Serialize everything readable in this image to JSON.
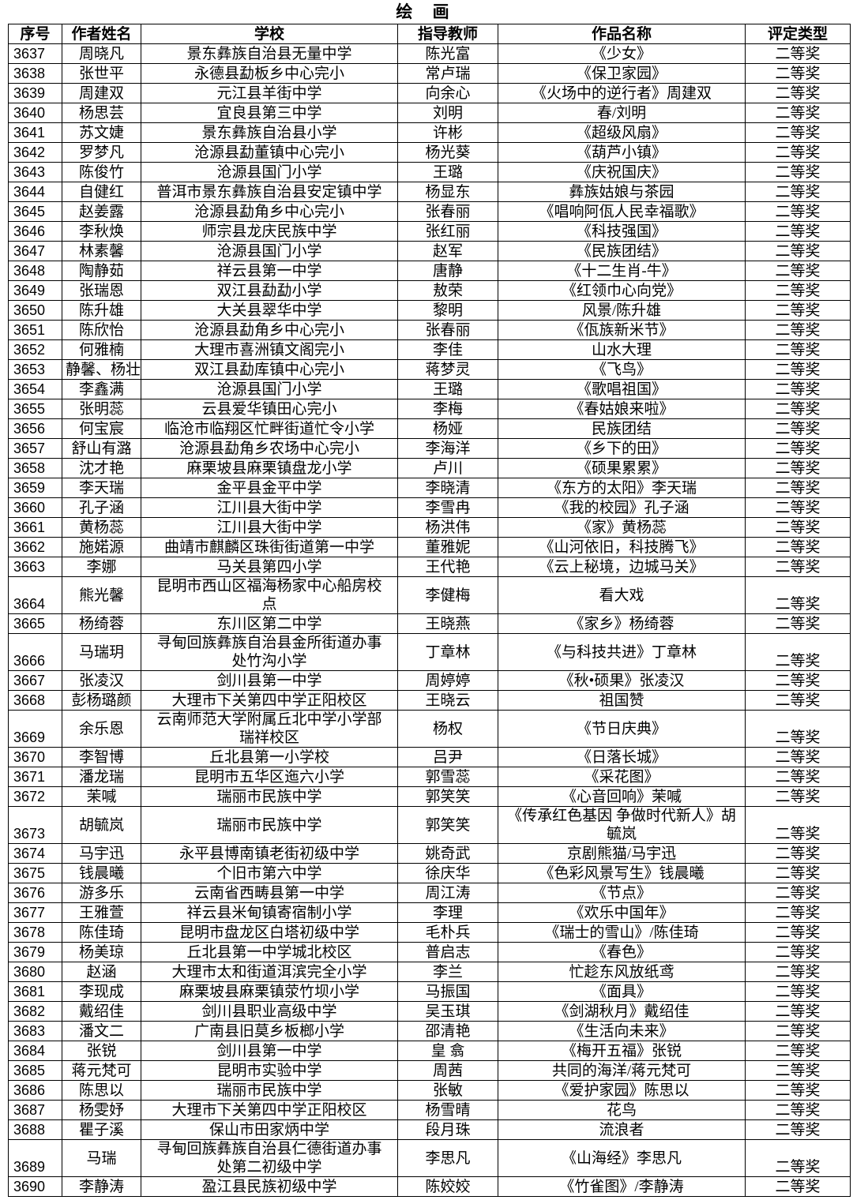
{
  "title": "绘 画",
  "table": {
    "headers": [
      "序号",
      "作者姓名",
      "学校",
      "指导教师",
      "作品名称",
      "评定类型"
    ],
    "rows": [
      [
        "3637",
        "周晓凡",
        "景东彝族自治县无量中学",
        "陈光富",
        "《少女》",
        "二等奖"
      ],
      [
        "3638",
        "张世平",
        "永德县勐板乡中心完小",
        "常卢瑞",
        "《保卫家园》",
        "二等奖"
      ],
      [
        "3639",
        "周建双",
        "元江县羊街中学",
        "向余心",
        "《火场中的逆行者》周建双",
        "二等奖"
      ],
      [
        "3640",
        "杨思芸",
        "宜良县第三中学",
        "刘明",
        "春/刘明",
        "二等奖"
      ],
      [
        "3641",
        "苏文婕",
        "景东彝族自治县小学",
        "许彬",
        "《超级风扇》",
        "二等奖"
      ],
      [
        "3642",
        "罗梦凡",
        "沧源县勐董镇中心完小",
        "杨光葵",
        "《葫芦小镇》",
        "二等奖"
      ],
      [
        "3643",
        "陈俊竹",
        "沧源县国门小学",
        "王璐",
        "《庆祝国庆》",
        "二等奖"
      ],
      [
        "3644",
        "自健红",
        "普洱市景东彝族自治县安定镇中学",
        "杨显东",
        "彝族姑娘与茶园",
        "二等奖"
      ],
      [
        "3645",
        "赵姜露",
        "沧源县勐角乡中心完小",
        "张春丽",
        "《唱响阿佤人民幸福歌》",
        "二等奖"
      ],
      [
        "3646",
        "李秋焕",
        "师宗县龙庆民族中学",
        "张红丽",
        "《科技强国》",
        "二等奖"
      ],
      [
        "3647",
        "林素馨",
        "沧源县国门小学",
        "赵军",
        "《民族团结》",
        "二等奖"
      ],
      [
        "3648",
        "陶静茹",
        "祥云县第一中学",
        "唐静",
        "《十二生肖-牛》",
        "二等奖"
      ],
      [
        "3649",
        "张瑞恩",
        "双江县勐勐小学",
        "敖荣",
        "《红领巾心向党》",
        "二等奖"
      ],
      [
        "3650",
        "陈升雄",
        "大关县翠华中学",
        "黎明",
        "风景/陈升雄",
        "二等奖"
      ],
      [
        "3651",
        "陈欣怡",
        "沧源县勐角乡中心完小",
        "张春丽",
        "《佤族新米节》",
        "二等奖"
      ],
      [
        "3652",
        "何雅楠",
        "大理市喜洲镇文阁完小",
        "李佳",
        "山水大理",
        "二等奖"
      ],
      [
        "3653",
        "静馨、杨壮",
        "双江县勐库镇中心完小",
        "蒋梦灵",
        "《飞鸟》",
        "二等奖"
      ],
      [
        "3654",
        "李鑫满",
        "沧源县国门小学",
        "王璐",
        "《歌唱祖国》",
        "二等奖"
      ],
      [
        "3655",
        "张明蕊",
        "云县爱华镇田心完小",
        "李梅",
        "《春姑娘来啦》",
        "二等奖"
      ],
      [
        "3656",
        "何宝宸",
        "临沧市临翔区忙畔街道忙令小学",
        "杨娅",
        "民族团结",
        "二等奖"
      ],
      [
        "3657",
        "舒山有潞",
        "沧源县勐角乡农场中心完小",
        "李海洋",
        "《乡下的田》",
        "二等奖"
      ],
      [
        "3658",
        "沈才艳",
        "麻栗坡县麻栗镇盘龙小学",
        "卢川",
        "《硕果累累》",
        "二等奖"
      ],
      [
        "3659",
        "李天瑞",
        "金平县金平中学",
        "李晓清",
        "《东方的太阳》李天瑞",
        "二等奖"
      ],
      [
        "3660",
        "孔子涵",
        "江川县大街中学",
        "李雪冉",
        "《我的校园》孔子涵",
        "二等奖"
      ],
      [
        "3661",
        "黄杨蕊",
        "江川县大街中学",
        "杨洪伟",
        "《家》黄杨蕊",
        "二等奖"
      ],
      [
        "3662",
        "施婼源",
        "曲靖市麒麟区珠街街道第一中学",
        "董雅妮",
        "《山河依旧，科技腾飞》",
        "二等奖"
      ],
      [
        "3663",
        "李娜",
        "马关县第四小学",
        "王代艳",
        "《云上秘境，边城马关》",
        "二等奖"
      ],
      [
        "3664",
        "熊光馨",
        "昆明市西山区福海杨家中心船房校点",
        "李健梅",
        "看大戏",
        "二等奖"
      ],
      [
        "3665",
        "杨绮蓉",
        "东川区第二中学",
        "王晓燕",
        "《家乡》杨绮蓉",
        "二等奖"
      ],
      [
        "3666",
        "马瑞玥",
        "寻甸回族彝族自治县金所街道办事处竹沟小学",
        "丁章林",
        "《与科技共进》丁章林",
        "二等奖"
      ],
      [
        "3667",
        "张凌汉",
        "剑川县第一中学",
        "周婷婷",
        "《秋•硕果》张凌汉",
        "二等奖"
      ],
      [
        "3668",
        "彭杨璐颜",
        "大理市下关第四中学正阳校区",
        "王晓云",
        "祖国赞",
        "二等奖"
      ],
      [
        "3669",
        "余乐恩",
        "云南师范大学附属丘北中学小学部瑞祥校区",
        "杨权",
        "《节日庆典》",
        "二等奖"
      ],
      [
        "3670",
        "李智博",
        "丘北县第一小学校",
        "吕尹",
        "《日落长城》",
        "二等奖"
      ],
      [
        "3671",
        "潘龙瑞",
        "昆明市五华区迤六小学",
        "郭雪蕊",
        "《采花图》",
        "二等奖"
      ],
      [
        "3672",
        "茉喊",
        "瑞丽市民族中学",
        "郭笑笑",
        "《心音回响》茉喊",
        "二等奖"
      ],
      [
        "3673",
        "胡毓岚",
        "瑞丽市民族中学",
        "郭笑笑",
        "《传承红色基因 争做时代新人》胡毓岚",
        "二等奖"
      ],
      [
        "3674",
        "马宇迅",
        "永平县博南镇老街初级中学",
        "姚奇武",
        "京剧熊猫/马宇迅",
        "二等奖"
      ],
      [
        "3675",
        "钱晨曦",
        "个旧市第六中学",
        "徐庆华",
        "《色彩风景写生》钱晨曦",
        "二等奖"
      ],
      [
        "3676",
        "游多乐",
        "云南省西畴县第一中学",
        "周江涛",
        "《节点》",
        "二等奖"
      ],
      [
        "3677",
        "王雅萱",
        "祥云县米甸镇寄宿制小学",
        "李理",
        "《欢乐中国年》",
        "二等奖"
      ],
      [
        "3678",
        "陈佳琦",
        "昆明市盘龙区白塔初级中学",
        "毛朴兵",
        "《瑞士的雪山》/陈佳琦",
        "二等奖"
      ],
      [
        "3679",
        "杨美琼",
        "丘北县第一中学城北校区",
        "普启志",
        "《春色》",
        "二等奖"
      ],
      [
        "3680",
        "赵涵",
        "大理市太和街道洱滨完全小学",
        "李兰",
        "忙趁东风放纸鸢",
        "二等奖"
      ],
      [
        "3681",
        "李现成",
        "麻栗坡县麻栗镇荥竹坝小学",
        "马振国",
        "《面具》",
        "二等奖"
      ],
      [
        "3682",
        "戴绍佳",
        "剑川县职业高级中学",
        "吴玉琪",
        "《剑湖秋月》戴绍佳",
        "二等奖"
      ],
      [
        "3683",
        "潘文二",
        "广南县旧莫乡板榔小学",
        "邵清艳",
        "《生活向未来》",
        "二等奖"
      ],
      [
        "3684",
        "张锐",
        "剑川县第一中学",
        "皇 翕",
        "《梅开五福》张锐",
        "二等奖"
      ],
      [
        "3685",
        "蒋元梵可",
        "昆明市实验中学",
        "周茜",
        "共同的海洋/蒋元梵可",
        "二等奖"
      ],
      [
        "3686",
        "陈思以",
        "瑞丽市民族中学",
        "张敏",
        "《爱护家园》陈思以",
        "二等奖"
      ],
      [
        "3687",
        "杨雯妤",
        "大理市下关第四中学正阳校区",
        "杨雪晴",
        "花鸟",
        "二等奖"
      ],
      [
        "3688",
        "瞿子溪",
        "保山市田家炳中学",
        "段月珠",
        "流浪者",
        "二等奖"
      ],
      [
        "3689",
        "马瑞",
        "寻甸回族彝族自治县仁德街道办事处第二初级中学",
        "李思凡",
        "《山海经》李思凡",
        "二等奖"
      ],
      [
        "3690",
        "李静涛",
        "盈江县民族初级中学",
        "陈姣姣",
        "《竹雀图》/李静涛",
        "二等奖"
      ]
    ]
  }
}
